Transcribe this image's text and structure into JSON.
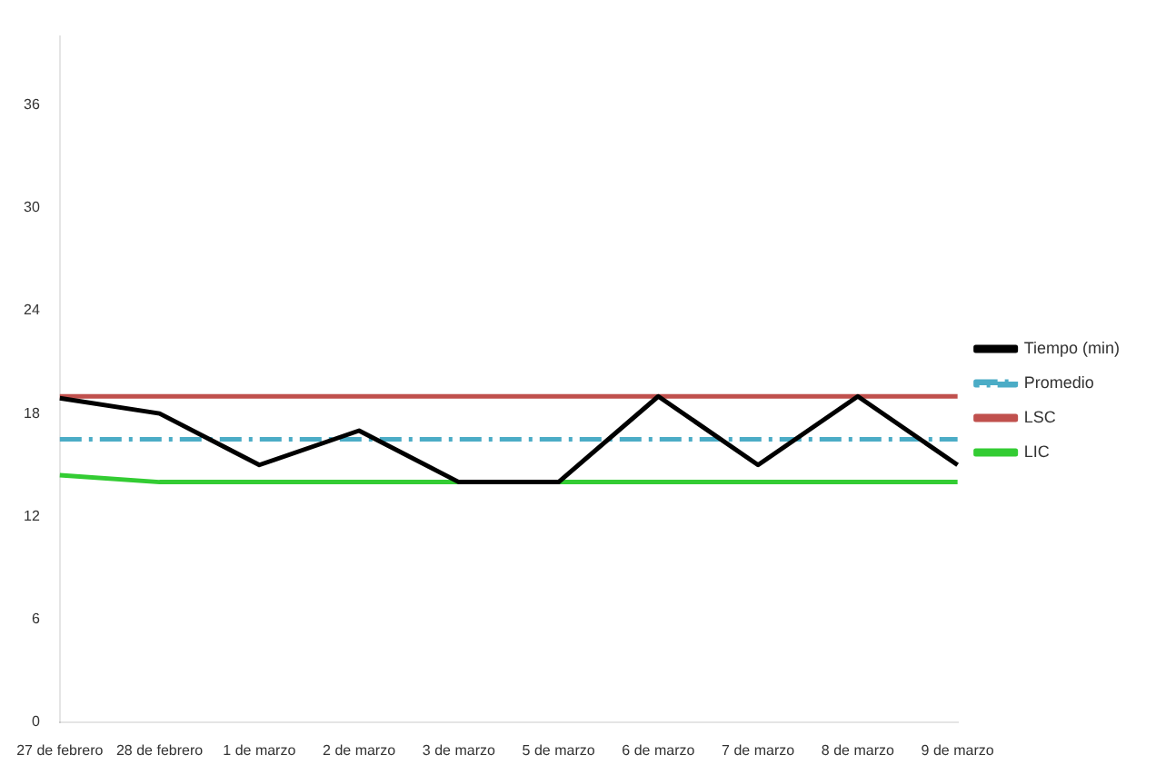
{
  "chart_data": {
    "type": "line",
    "categories": [
      "27 de febrero",
      "28 de febrero",
      "1 de marzo",
      "2 de marzo",
      "3 de marzo",
      "5 de marzo",
      "6 de marzo",
      "7 de marzo",
      "8 de marzo",
      "9 de marzo"
    ],
    "series": [
      {
        "name": "Tiempo (min)",
        "color": "#000000",
        "values": [
          18.9,
          18,
          15,
          17,
          14,
          14,
          19,
          15,
          19,
          15
        ]
      },
      {
        "name": "Promedio",
        "color": "#4bacc6",
        "line_style": "dashed",
        "values": [
          16.5,
          16.5,
          16.5,
          16.5,
          16.5,
          16.5,
          16.5,
          16.5,
          16.5,
          16.5
        ]
      },
      {
        "name": "LSC",
        "color": "#c0504d",
        "values": [
          19,
          19,
          19,
          19,
          19,
          19,
          19,
          19,
          19,
          19
        ]
      },
      {
        "name": "LIC",
        "color": "#33cc33",
        "values": [
          14.4,
          14,
          14,
          14,
          14,
          14,
          14,
          14,
          14,
          14
        ]
      }
    ],
    "ylim": [
      0,
      40
    ],
    "yticks": [
      0,
      6,
      12,
      18,
      24,
      30,
      36
    ],
    "grid": false,
    "legend": "right",
    "marker": "none"
  }
}
